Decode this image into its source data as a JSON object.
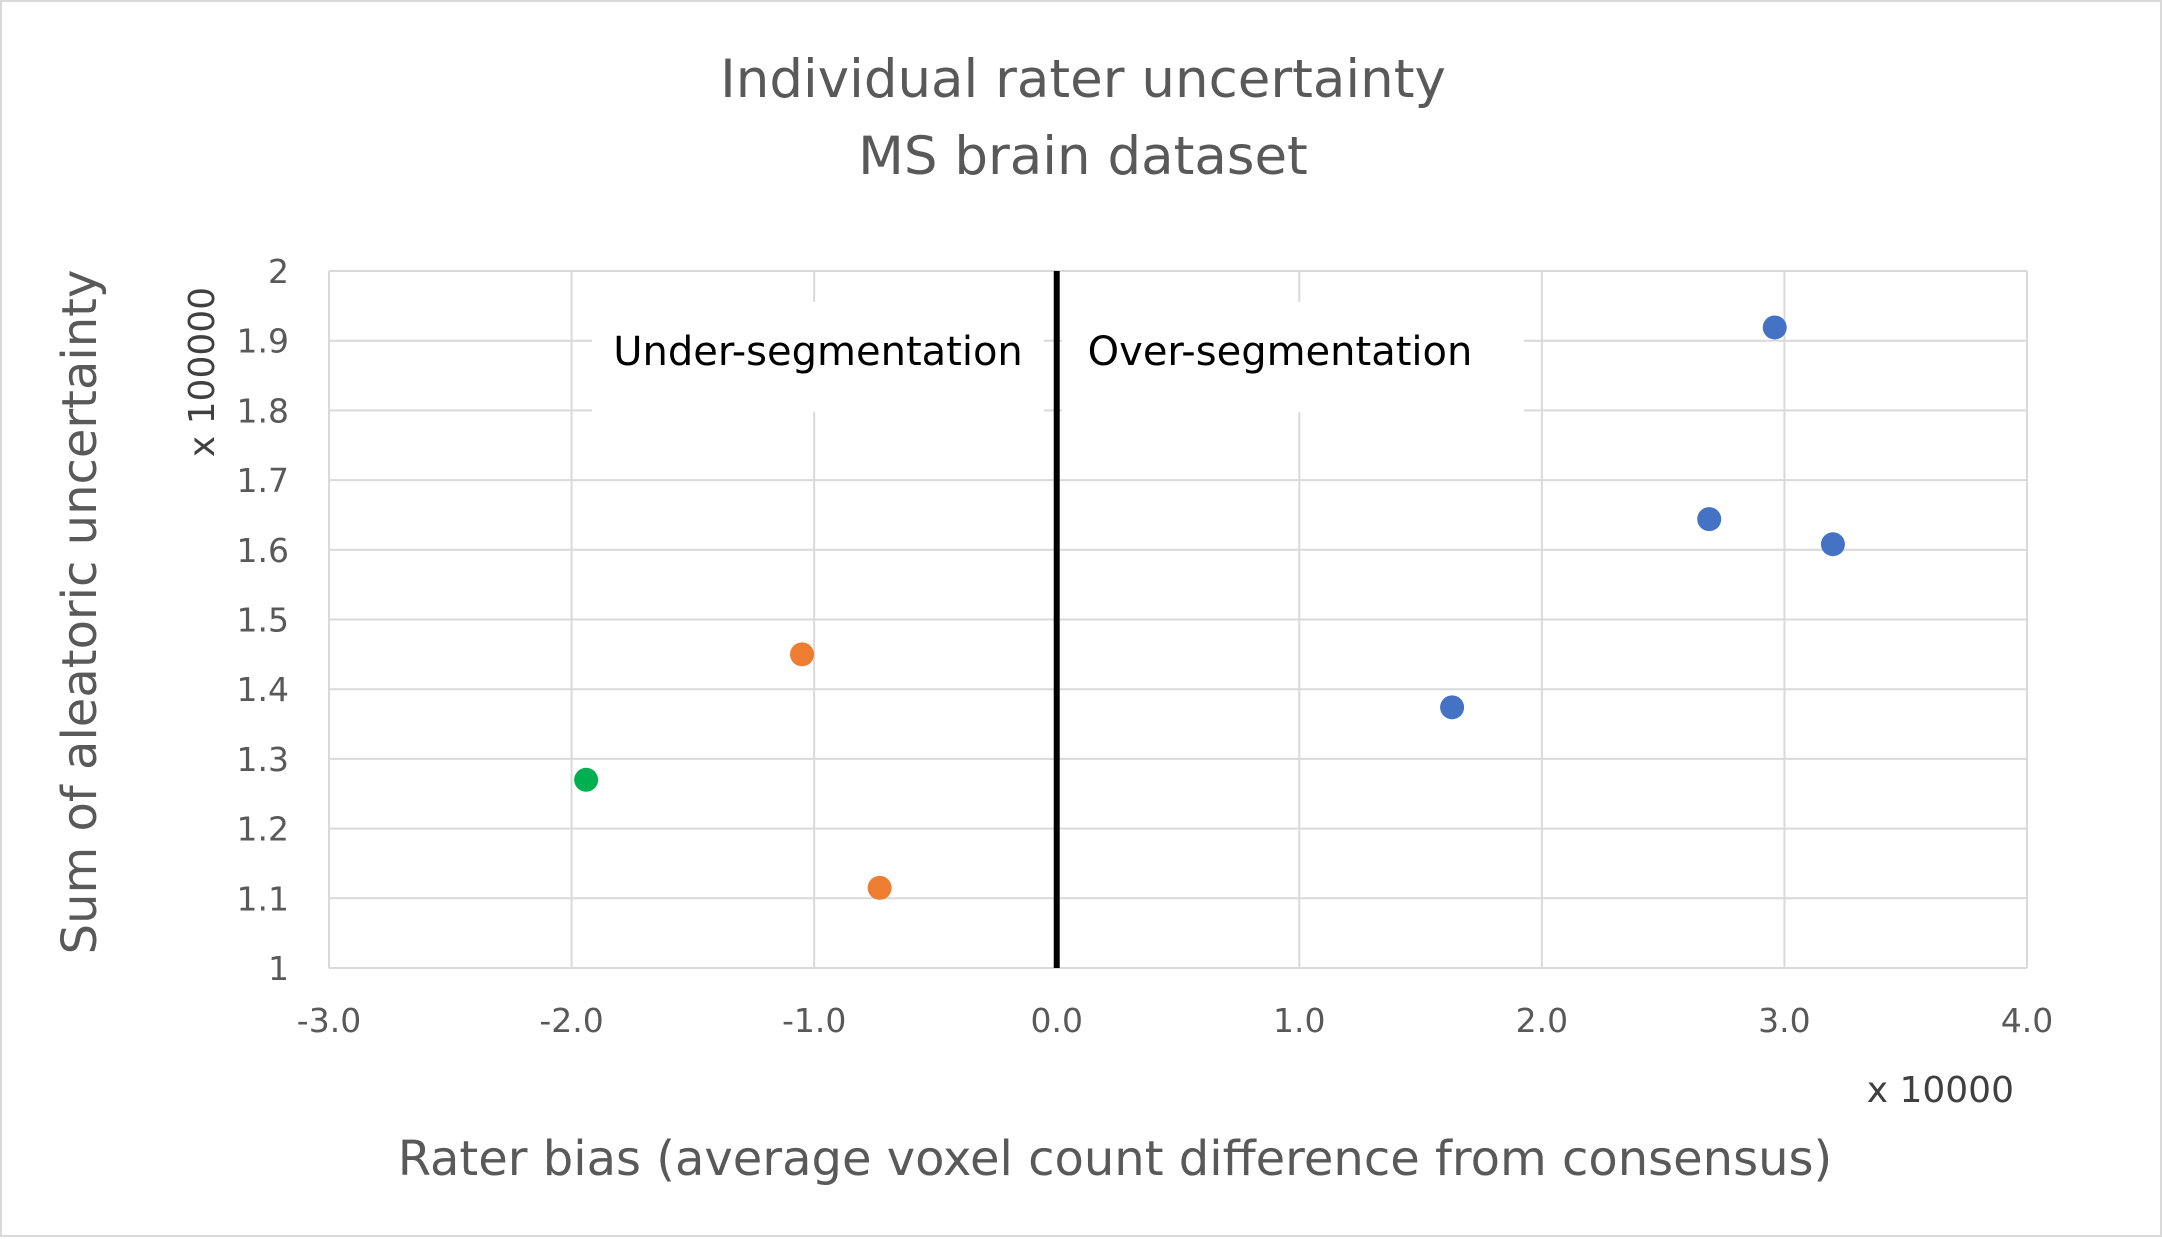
{
  "chart_data": {
    "type": "scatter",
    "title": [
      "Individual rater uncertainty",
      "MS brain dataset"
    ],
    "xlabel": "Rater bias (average voxel count difference from consensus)",
    "ylabel": "Sum of aleatoric uncertainty",
    "x_unit": "x 10000",
    "y_unit": "x 100000",
    "xlim": [
      -3.0,
      4.0
    ],
    "ylim": [
      1.0,
      2.0
    ],
    "x_ticks": [
      "-3.0",
      "-2.0",
      "-1.0",
      "0.0",
      "1.0",
      "2.0",
      "3.0",
      "4.0"
    ],
    "y_ticks": [
      "1",
      "1.1",
      "1.2",
      "1.3",
      "1.4",
      "1.5",
      "1.6",
      "1.7",
      "1.8",
      "1.9",
      "2"
    ],
    "grid": true,
    "reference_line_x": 0.0,
    "annotations": [
      {
        "text": "Under-segmentation",
        "side": "left-of-zero"
      },
      {
        "text": "Over-segmentation",
        "side": "right-of-zero"
      }
    ],
    "series": [
      {
        "name": "green",
        "color": "#00b050",
        "points": [
          [
            -1.94,
            1.27
          ]
        ]
      },
      {
        "name": "orange",
        "color": "#ed7d31",
        "points": [
          [
            -1.05,
            1.45
          ],
          [
            -0.73,
            1.115
          ]
        ]
      },
      {
        "name": "blue",
        "color": "#4472c4",
        "points": [
          [
            1.63,
            1.374
          ],
          [
            2.69,
            1.644
          ],
          [
            2.96,
            1.919
          ],
          [
            3.2,
            1.608
          ]
        ]
      }
    ]
  }
}
